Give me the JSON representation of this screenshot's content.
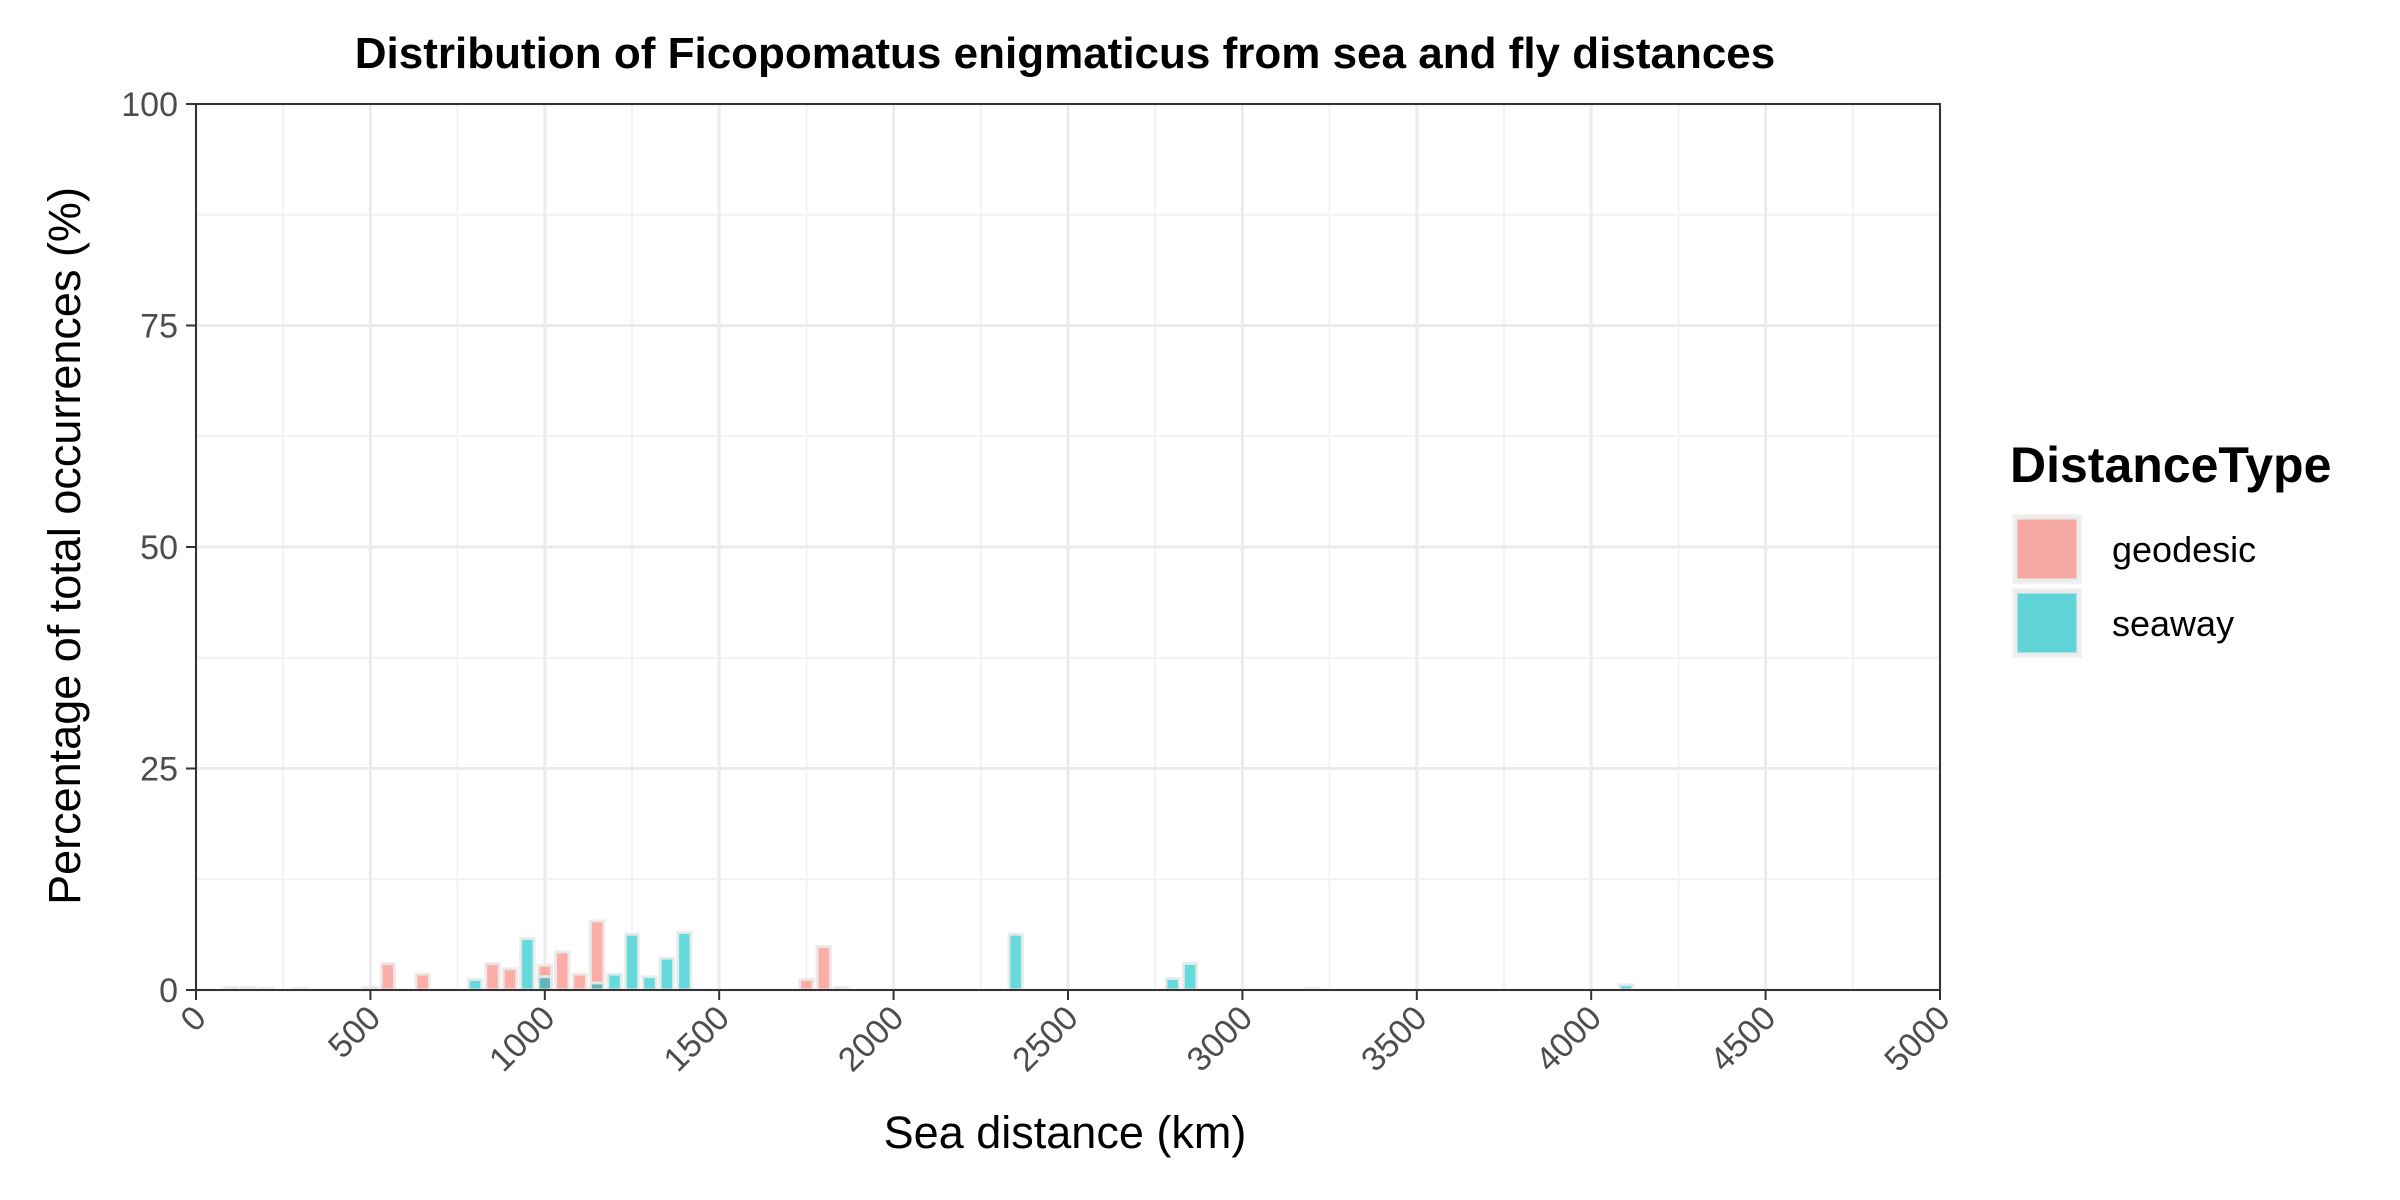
{
  "chart_data": {
    "type": "bar",
    "title": "Distribution of Ficopomatus enigmaticus from sea and fly distances",
    "xlabel": "Sea distance (km)",
    "ylabel": "Percentage of total occurrences (%)",
    "xlim": [
      0,
      5000
    ],
    "ylim": [
      0,
      100
    ],
    "x_ticks": [
      0,
      500,
      1000,
      1500,
      2000,
      2500,
      3000,
      3500,
      4000,
      4500,
      5000
    ],
    "x_tick_labels": [
      "0",
      "500",
      "1000",
      "1500",
      "2000",
      "2500",
      "3000",
      "3500",
      "4000",
      "4500",
      "5000"
    ],
    "y_ticks": [
      0,
      25,
      50,
      75,
      100
    ],
    "y_tick_labels": [
      "0",
      "25",
      "50",
      "75",
      "100"
    ],
    "bin_width": 50,
    "grid": true,
    "legend_position": "right",
    "legend_title": "DistanceType",
    "series": [
      {
        "name": "geodesic",
        "color": "#F8766D",
        "points": [
          {
            "x": 100,
            "y": 0.3
          },
          {
            "x": 150,
            "y": 0.3
          },
          {
            "x": 200,
            "y": 0.2
          },
          {
            "x": 300,
            "y": 0.2
          },
          {
            "x": 500,
            "y": 0.3
          },
          {
            "x": 550,
            "y": 3.0
          },
          {
            "x": 650,
            "y": 1.8
          },
          {
            "x": 850,
            "y": 3.0
          },
          {
            "x": 900,
            "y": 2.4
          },
          {
            "x": 1000,
            "y": 2.8
          },
          {
            "x": 1050,
            "y": 4.3
          },
          {
            "x": 1100,
            "y": 1.8
          },
          {
            "x": 1150,
            "y": 7.8
          },
          {
            "x": 1750,
            "y": 1.2
          },
          {
            "x": 1800,
            "y": 4.9
          },
          {
            "x": 1850,
            "y": 0.3
          },
          {
            "x": 3200,
            "y": 0.2
          }
        ]
      },
      {
        "name": "seaway",
        "color": "#00BFC4",
        "points": [
          {
            "x": 800,
            "y": 1.2
          },
          {
            "x": 950,
            "y": 5.8
          },
          {
            "x": 1000,
            "y": 1.5
          },
          {
            "x": 1150,
            "y": 0.8
          },
          {
            "x": 1200,
            "y": 1.8
          },
          {
            "x": 1250,
            "y": 6.3
          },
          {
            "x": 1300,
            "y": 1.5
          },
          {
            "x": 1350,
            "y": 3.6
          },
          {
            "x": 1400,
            "y": 6.5
          },
          {
            "x": 2350,
            "y": 6.3
          },
          {
            "x": 2800,
            "y": 1.3
          },
          {
            "x": 2850,
            "y": 3.0
          },
          {
            "x": 4100,
            "y": 0.6
          }
        ]
      }
    ]
  }
}
